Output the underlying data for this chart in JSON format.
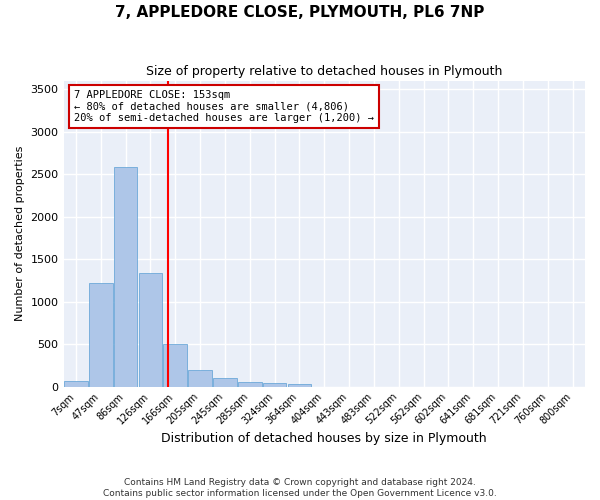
{
  "title": "7, APPLEDORE CLOSE, PLYMOUTH, PL6 7NP",
  "subtitle": "Size of property relative to detached houses in Plymouth",
  "xlabel": "Distribution of detached houses by size in Plymouth",
  "ylabel": "Number of detached properties",
  "bin_labels": [
    "7sqm",
    "47sqm",
    "86sqm",
    "126sqm",
    "166sqm",
    "205sqm",
    "245sqm",
    "285sqm",
    "324sqm",
    "364sqm",
    "404sqm",
    "443sqm",
    "483sqm",
    "522sqm",
    "562sqm",
    "602sqm",
    "641sqm",
    "681sqm",
    "721sqm",
    "760sqm",
    "800sqm"
  ],
  "bar_values": [
    60,
    1220,
    2580,
    1340,
    500,
    190,
    100,
    50,
    40,
    30,
    0,
    0,
    0,
    0,
    0,
    0,
    0,
    0,
    0,
    0,
    0
  ],
  "bar_color": "#aec6e8",
  "bar_edge_color": "#5a9fd4",
  "annotation_text": "7 APPLEDORE CLOSE: 153sqm\n← 80% of detached houses are smaller (4,806)\n20% of semi-detached houses are larger (1,200) →",
  "annotation_box_color": "#cc0000",
  "ylim": [
    0,
    3600
  ],
  "yticks": [
    0,
    500,
    1000,
    1500,
    2000,
    2500,
    3000,
    3500
  ],
  "red_line_x": 3.69,
  "bg_color": "#eaeff8",
  "grid_color": "#ffffff",
  "footer_line1": "Contains HM Land Registry data © Crown copyright and database right 2024.",
  "footer_line2": "Contains public sector information licensed under the Open Government Licence v3.0."
}
